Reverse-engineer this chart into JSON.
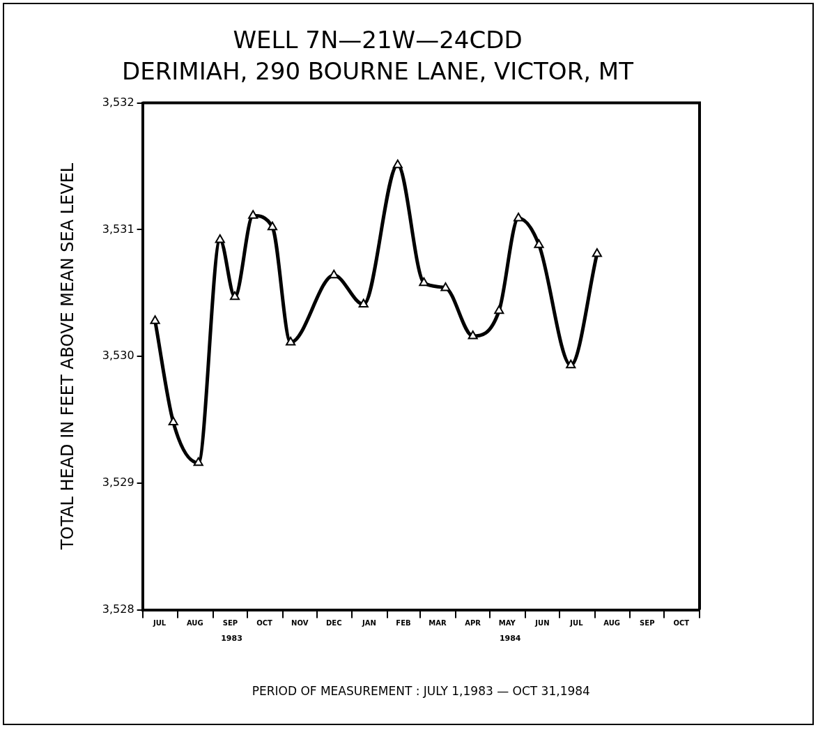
{
  "chart_data": {
    "type": "line",
    "title": "WELL 7N—21W—24CDD",
    "subtitle": "DERIMIAH, 290 BOURNE LANE, VICTOR, MT",
    "xlabel": "PERIOD OF MEASUREMENT : JULY 1,1983 — OCT 31,1984",
    "ylabel": "TOTAL HEAD IN FEET ABOVE MEAN SEA LEVEL",
    "x": [
      "1983-07-12",
      "1983-07-28",
      "1983-08-19",
      "1983-09-07",
      "1983-09-20",
      "1983-10-06",
      "1983-10-23",
      "1983-11-08",
      "1983-12-16",
      "1984-01-11",
      "1984-02-10",
      "1984-03-04",
      "1984-03-23",
      "1984-04-16",
      "1984-05-09",
      "1984-05-26",
      "1984-06-13",
      "1984-07-11",
      "1984-08-03"
    ],
    "series": [
      {
        "color": "#000000",
        "values": [
          3530.28,
          3529.48,
          3529.16,
          3530.92,
          3530.47,
          3531.11,
          3531.02,
          3530.11,
          3530.64,
          3530.41,
          3531.51,
          3530.58,
          3530.54,
          3530.16,
          3530.36,
          3531.09,
          3530.88,
          3529.93,
          3530.81
        ]
      }
    ],
    "marker": "triangle",
    "line_style": "solid",
    "grid": false,
    "legend": false,
    "xlim": [
      "1983-07-01",
      "1984-11-01"
    ],
    "xticks": [
      {
        "value": "1983-07-01",
        "label": null
      },
      {
        "value": "1983-07-16",
        "label": "JUL"
      },
      {
        "value": "1983-08-01",
        "label": null
      },
      {
        "value": "1983-08-16",
        "label": "AUG"
      },
      {
        "value": "1983-09-01",
        "label": null
      },
      {
        "value": "1983-09-16",
        "label": "SEP"
      },
      {
        "value": "1983-10-01",
        "label": null
      },
      {
        "value": "1983-10-16",
        "label": "OCT"
      },
      {
        "value": "1983-11-01",
        "label": null
      },
      {
        "value": "1983-11-16",
        "label": "NOV"
      },
      {
        "value": "1983-12-01",
        "label": null
      },
      {
        "value": "1983-12-16",
        "label": "DEC"
      },
      {
        "value": "1984-01-01",
        "label": null
      },
      {
        "value": "1984-01-16",
        "label": "JAN"
      },
      {
        "value": "1984-02-01",
        "label": null
      },
      {
        "value": "1984-02-15",
        "label": "FEB"
      },
      {
        "value": "1984-03-01",
        "label": null
      },
      {
        "value": "1984-03-16",
        "label": "MAR"
      },
      {
        "value": "1984-04-01",
        "label": null
      },
      {
        "value": "1984-04-16",
        "label": "APR"
      },
      {
        "value": "1984-05-01",
        "label": null
      },
      {
        "value": "1984-05-16",
        "label": "MAY"
      },
      {
        "value": "1984-06-01",
        "label": null
      },
      {
        "value": "1984-06-16",
        "label": "JUN"
      },
      {
        "value": "1984-07-01",
        "label": null
      },
      {
        "value": "1984-07-16",
        "label": "JUL"
      },
      {
        "value": "1984-08-01",
        "label": null
      },
      {
        "value": "1984-08-16",
        "label": "AUG"
      },
      {
        "value": "1984-09-01",
        "label": null
      },
      {
        "value": "1984-09-16",
        "label": "SEP"
      },
      {
        "value": "1984-10-01",
        "label": null
      },
      {
        "value": "1984-10-16",
        "label": "OCT"
      },
      {
        "value": "1984-11-01",
        "label": null
      }
    ],
    "ylim": [
      3528,
      3532
    ],
    "yticks": [
      {
        "value": 3528,
        "label": "3,528"
      },
      {
        "value": 3529,
        "label": "3,529"
      },
      {
        "value": 3530,
        "label": "3,530"
      },
      {
        "value": 3531,
        "label": "3,531"
      },
      {
        "value": 3532,
        "label": "3,532"
      }
    ],
    "annotations": [
      "1983",
      "1984"
    ]
  }
}
